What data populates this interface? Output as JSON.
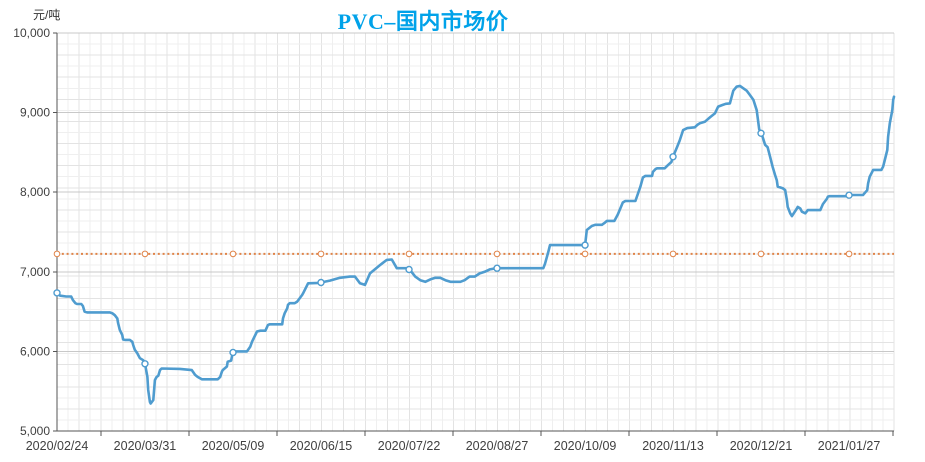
{
  "chart": {
    "title": "PVC–国内市场价",
    "unit_label": "元/吨"
  },
  "colors": {
    "title": "#00a2e9",
    "axis_text": "#404040",
    "axis_line": "#565656",
    "grid_minor": "#efefef",
    "grid_medium": "#e3e3e3",
    "grid_major": "#c8c8c8",
    "background": "#ffffff"
  },
  "chart_data": {
    "type": "line",
    "title": "PVC–国内市场价",
    "xlabel": "",
    "ylabel": "元/吨",
    "ylim": [
      5000,
      10000
    ],
    "grid": true,
    "legend": false,
    "y_axis": {
      "ticks": [
        10000,
        9000,
        8000,
        7000,
        6000,
        5000
      ],
      "labels": [
        "10,000",
        "9,000",
        "8,000",
        "7,000",
        "6,000",
        "5,000"
      ]
    },
    "x_axis": {
      "labels": [
        "2020/02/24",
        "2020/03/31",
        "2020/05/09",
        "2020/06/15",
        "2020/07/22",
        "2020/08/27",
        "2020/10/09",
        "2020/11/13",
        "2020/12/21",
        "2021/01/27"
      ],
      "label_t": [
        0,
        0.1051,
        0.2103,
        0.3154,
        0.4206,
        0.5257,
        0.6309,
        0.736,
        0.8411,
        0.9463
      ],
      "tickmark_t": [
        0.0526,
        0.1577,
        0.2629,
        0.368,
        0.4731,
        0.5783,
        0.6834,
        0.7885,
        0.8937,
        0.9988
      ]
    },
    "reference_line": {
      "value": 7225,
      "color": "#e08347",
      "style": "dotted",
      "marker": "circle"
    },
    "series": [
      {
        "name": "PVC国内市场价",
        "color": "#4f9ccf",
        "marker": "circle",
        "marker_t": [
          0,
          0.1051,
          0.2103,
          0.3154,
          0.4206,
          0.5257,
          0.6309,
          0.736,
          0.8411,
          0.9463
        ],
        "points": [
          [
            0,
            6735
          ],
          [
            0.004,
            6700
          ],
          [
            0.011,
            6690
          ],
          [
            0.017,
            6690
          ],
          [
            0.019,
            6645
          ],
          [
            0.022,
            6605
          ],
          [
            0.024,
            6595
          ],
          [
            0.029,
            6595
          ],
          [
            0.031,
            6570
          ],
          [
            0.033,
            6500
          ],
          [
            0.036,
            6490
          ],
          [
            0.063,
            6490
          ],
          [
            0.066,
            6480
          ],
          [
            0.069,
            6455
          ],
          [
            0.072,
            6415
          ],
          [
            0.073,
            6355
          ],
          [
            0.075,
            6270
          ],
          [
            0.078,
            6205
          ],
          [
            0.079,
            6150
          ],
          [
            0.081,
            6145
          ],
          [
            0.087,
            6145
          ],
          [
            0.09,
            6120
          ],
          [
            0.091,
            6080
          ],
          [
            0.093,
            6020
          ],
          [
            0.096,
            5975
          ],
          [
            0.097,
            5955
          ],
          [
            0.099,
            5915
          ],
          [
            0.103,
            5890
          ],
          [
            0.105,
            5850
          ],
          [
            0.108,
            5680
          ],
          [
            0.109,
            5515
          ],
          [
            0.111,
            5365
          ],
          [
            0.112,
            5345
          ],
          [
            0.115,
            5390
          ],
          [
            0.116,
            5515
          ],
          [
            0.117,
            5640
          ],
          [
            0.119,
            5680
          ],
          [
            0.121,
            5695
          ],
          [
            0.123,
            5765
          ],
          [
            0.125,
            5785
          ],
          [
            0.147,
            5780
          ],
          [
            0.161,
            5765
          ],
          [
            0.165,
            5705
          ],
          [
            0.168,
            5680
          ],
          [
            0.173,
            5650
          ],
          [
            0.192,
            5650
          ],
          [
            0.195,
            5680
          ],
          [
            0.197,
            5745
          ],
          [
            0.198,
            5765
          ],
          [
            0.203,
            5810
          ],
          [
            0.204,
            5870
          ],
          [
            0.208,
            5885
          ],
          [
            0.21,
            5985
          ],
          [
            0.213,
            6000
          ],
          [
            0.227,
            6000
          ],
          [
            0.231,
            6060
          ],
          [
            0.233,
            6120
          ],
          [
            0.234,
            6145
          ],
          [
            0.239,
            6250
          ],
          [
            0.243,
            6260
          ],
          [
            0.249,
            6260
          ],
          [
            0.252,
            6330
          ],
          [
            0.254,
            6340
          ],
          [
            0.269,
            6340
          ],
          [
            0.27,
            6415
          ],
          [
            0.272,
            6480
          ],
          [
            0.275,
            6540
          ],
          [
            0.276,
            6585
          ],
          [
            0.278,
            6605
          ],
          [
            0.284,
            6605
          ],
          [
            0.287,
            6625
          ],
          [
            0.293,
            6710
          ],
          [
            0.294,
            6730
          ],
          [
            0.3,
            6855
          ],
          [
            0.313,
            6860
          ],
          [
            0.326,
            6890
          ],
          [
            0.338,
            6925
          ],
          [
            0.35,
            6940
          ],
          [
            0.356,
            6940
          ],
          [
            0.362,
            6855
          ],
          [
            0.368,
            6835
          ],
          [
            0.374,
            6980
          ],
          [
            0.386,
            7085
          ],
          [
            0.394,
            7150
          ],
          [
            0.4,
            7155
          ],
          [
            0.406,
            7045
          ],
          [
            0.418,
            7045
          ],
          [
            0.422,
            7020
          ],
          [
            0.428,
            6940
          ],
          [
            0.434,
            6895
          ],
          [
            0.44,
            6875
          ],
          [
            0.446,
            6905
          ],
          [
            0.452,
            6925
          ],
          [
            0.458,
            6925
          ],
          [
            0.464,
            6895
          ],
          [
            0.47,
            6875
          ],
          [
            0.482,
            6875
          ],
          [
            0.487,
            6895
          ],
          [
            0.493,
            6940
          ],
          [
            0.499,
            6940
          ],
          [
            0.505,
            6980
          ],
          [
            0.511,
            7000
          ],
          [
            0.517,
            7030
          ],
          [
            0.525,
            7045
          ],
          [
            0.581,
            7045
          ],
          [
            0.583,
            7100
          ],
          [
            0.587,
            7250
          ],
          [
            0.589,
            7335
          ],
          [
            0.631,
            7335
          ],
          [
            0.633,
            7525
          ],
          [
            0.639,
            7575
          ],
          [
            0.643,
            7590
          ],
          [
            0.651,
            7590
          ],
          [
            0.655,
            7620
          ],
          [
            0.657,
            7640
          ],
          [
            0.666,
            7640
          ],
          [
            0.67,
            7720
          ],
          [
            0.676,
            7870
          ],
          [
            0.679,
            7890
          ],
          [
            0.691,
            7890
          ],
          [
            0.697,
            8070
          ],
          [
            0.7,
            8185
          ],
          [
            0.703,
            8205
          ],
          [
            0.711,
            8205
          ],
          [
            0.712,
            8255
          ],
          [
            0.715,
            8290
          ],
          [
            0.717,
            8300
          ],
          [
            0.726,
            8300
          ],
          [
            0.73,
            8340
          ],
          [
            0.734,
            8380
          ],
          [
            0.736,
            8445
          ],
          [
            0.741,
            8570
          ],
          [
            0.744,
            8650
          ],
          [
            0.748,
            8780
          ],
          [
            0.753,
            8805
          ],
          [
            0.762,
            8815
          ],
          [
            0.765,
            8845
          ],
          [
            0.768,
            8865
          ],
          [
            0.774,
            8885
          ],
          [
            0.78,
            8940
          ],
          [
            0.786,
            8990
          ],
          [
            0.79,
            9075
          ],
          [
            0.795,
            9095
          ],
          [
            0.799,
            9110
          ],
          [
            0.804,
            9115
          ],
          [
            0.808,
            9275
          ],
          [
            0.812,
            9325
          ],
          [
            0.816,
            9335
          ],
          [
            0.82,
            9305
          ],
          [
            0.824,
            9275
          ],
          [
            0.828,
            9220
          ],
          [
            0.832,
            9160
          ],
          [
            0.836,
            9030
          ],
          [
            0.839,
            8790
          ],
          [
            0.843,
            8695
          ],
          [
            0.846,
            8595
          ],
          [
            0.849,
            8565
          ],
          [
            0.852,
            8445
          ],
          [
            0.855,
            8320
          ],
          [
            0.858,
            8215
          ],
          [
            0.86,
            8150
          ],
          [
            0.861,
            8070
          ],
          [
            0.867,
            8050
          ],
          [
            0.87,
            8025
          ],
          [
            0.872,
            7900
          ],
          [
            0.873,
            7815
          ],
          [
            0.876,
            7735
          ],
          [
            0.878,
            7700
          ],
          [
            0.879,
            7715
          ],
          [
            0.884,
            7795
          ],
          [
            0.885,
            7815
          ],
          [
            0.888,
            7795
          ],
          [
            0.89,
            7755
          ],
          [
            0.894,
            7735
          ],
          [
            0.897,
            7775
          ],
          [
            0.912,
            7775
          ],
          [
            0.915,
            7850
          ],
          [
            0.92,
            7920
          ],
          [
            0.921,
            7945
          ],
          [
            0.923,
            7950
          ],
          [
            0.943,
            7950
          ],
          [
            0.947,
            7965
          ],
          [
            0.963,
            7965
          ],
          [
            0.968,
            8025
          ],
          [
            0.969,
            8110
          ],
          [
            0.971,
            8195
          ],
          [
            0.974,
            8255
          ],
          [
            0.975,
            8280
          ],
          [
            0.985,
            8280
          ],
          [
            0.987,
            8320
          ],
          [
            0.989,
            8405
          ],
          [
            0.992,
            8530
          ],
          [
            0.993,
            8695
          ],
          [
            0.995,
            8865
          ],
          [
            0.998,
            9030
          ],
          [
            0.999,
            9160
          ],
          [
            1,
            9200
          ]
        ]
      }
    ]
  }
}
